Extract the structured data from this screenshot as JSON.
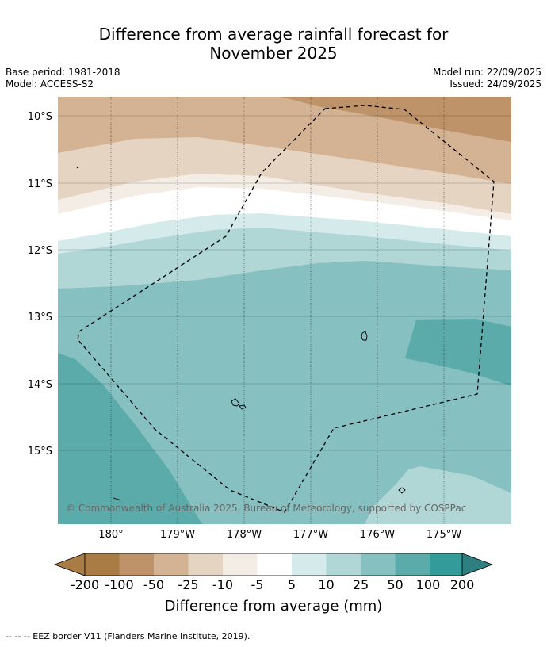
{
  "title": {
    "line1": "Difference from average rainfall forecast for",
    "line2": "November 2025"
  },
  "meta": {
    "base_period": "Base period: 1981-2018",
    "model": "Model: ACCESS-S2",
    "model_run": "Model run: 22/09/2025",
    "issued": "Issued: 24/09/2025"
  },
  "map": {
    "lat_labels": [
      "10°S",
      "11°S",
      "12°S",
      "13°S",
      "14°S",
      "15°S"
    ],
    "lon_labels": [
      "180°",
      "179°W",
      "178°W",
      "177°W",
      "176°W",
      "175°W"
    ],
    "copyright": "© Commonwealth of Australia 2025, Bureau of Meteorology, supported by COSPPac"
  },
  "colorbar": {
    "ticks": [
      "-200",
      "-100",
      "-50",
      "-25",
      "-10",
      "-5",
      "5",
      "10",
      "25",
      "50",
      "100",
      "200"
    ],
    "colors": [
      "#a97b45",
      "#be9369",
      "#d4b394",
      "#e6d4c2",
      "#f3ede6",
      "#ffffff",
      "#d5eaea",
      "#b0d6d6",
      "#87c0c0",
      "#5cabab",
      "#339c9a",
      "#2f7f80"
    ],
    "label": "Difference from average (mm)"
  },
  "footer": "--  --  -- EEZ border V11 (Flanders Marine Institute, 2019)."
}
